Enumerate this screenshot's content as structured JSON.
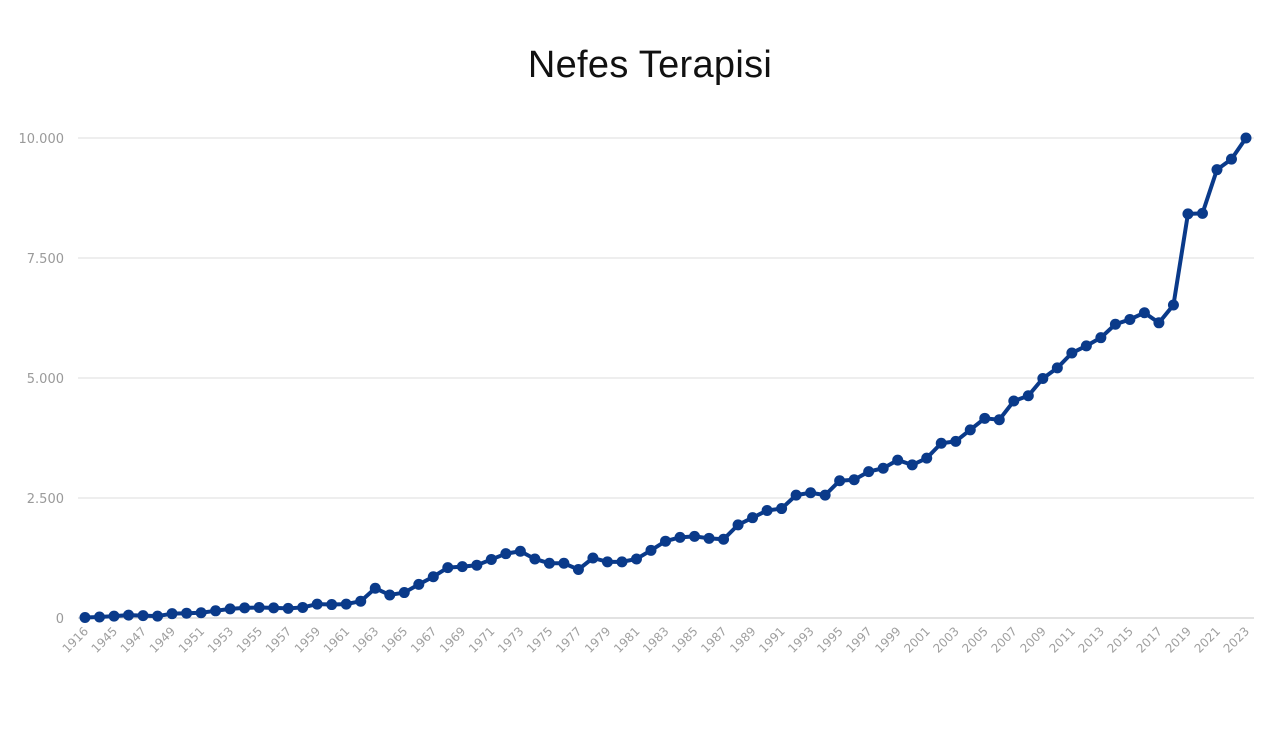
{
  "chart_data": {
    "type": "line",
    "title": "Nefes Terapisi",
    "xlabel": "",
    "ylabel": "",
    "ylim": [
      0,
      10000
    ],
    "yticks": [
      {
        "value": 0,
        "label": "0"
      },
      {
        "value": 2500,
        "label": "2.500"
      },
      {
        "value": 5000,
        "label": "5.000"
      },
      {
        "value": 7500,
        "label": "7.500"
      },
      {
        "value": 10000,
        "label": "10.000"
      }
    ],
    "grid": true,
    "line_color": "#0a3a8a",
    "categories": [
      "1916",
      "1944",
      "1945",
      "1946",
      "1947",
      "1948",
      "1949",
      "1950",
      "1951",
      "1952",
      "1953",
      "1954",
      "1955",
      "1956",
      "1957",
      "1958",
      "1959",
      "1960",
      "1961",
      "1962",
      "1963",
      "1964",
      "1965",
      "1966",
      "1967",
      "1968",
      "1969",
      "1970",
      "1971",
      "1972",
      "1973",
      "1974",
      "1975",
      "1976",
      "1977",
      "1978",
      "1979",
      "1980",
      "1981",
      "1982",
      "1983",
      "1984",
      "1985",
      "1986",
      "1987",
      "1988",
      "1989",
      "1990",
      "1991",
      "1992",
      "1993",
      "1994",
      "1995",
      "1996",
      "1997",
      "1998",
      "1999",
      "2000",
      "2001",
      "2002",
      "2003",
      "2004",
      "2005",
      "2006",
      "2007",
      "2008",
      "2009",
      "2010",
      "2011",
      "2012",
      "2013",
      "2014",
      "2015",
      "2016",
      "2017",
      "2018",
      "2019",
      "2020",
      "2021",
      "2022",
      "2023"
    ],
    "xtick_labels": [
      "1916",
      "1945",
      "1947",
      "1949",
      "1951",
      "1953",
      "1955",
      "1957",
      "1959",
      "1961",
      "1963",
      "1965",
      "1967",
      "1969",
      "1971",
      "1973",
      "1975",
      "1977",
      "1979",
      "1981",
      "1983",
      "1985",
      "1987",
      "1989",
      "1991",
      "1993",
      "1995",
      "1997",
      "1999",
      "2001",
      "2003",
      "2005",
      "2007",
      "2009",
      "2011",
      "2013",
      "2015",
      "2017",
      "2019",
      "2021",
      "2023"
    ],
    "values": [
      10,
      20,
      40,
      60,
      50,
      40,
      90,
      100,
      110,
      150,
      190,
      210,
      220,
      210,
      200,
      220,
      290,
      280,
      290,
      350,
      620,
      480,
      530,
      700,
      860,
      1050,
      1070,
      1100,
      1220,
      1340,
      1390,
      1230,
      1140,
      1140,
      1010,
      1250,
      1170,
      1170,
      1230,
      1410,
      1600,
      1680,
      1700,
      1660,
      1640,
      1940,
      2090,
      2240,
      2280,
      2560,
      2610,
      2560,
      2860,
      2880,
      3050,
      3120,
      3290,
      3190,
      3330,
      3640,
      3680,
      3920,
      4160,
      4130,
      4520,
      4630,
      4990,
      5210,
      5520,
      5670,
      5840,
      6120,
      6220,
      6360,
      6150,
      6520,
      8420,
      8430,
      9340,
      9560,
      10000
    ]
  }
}
